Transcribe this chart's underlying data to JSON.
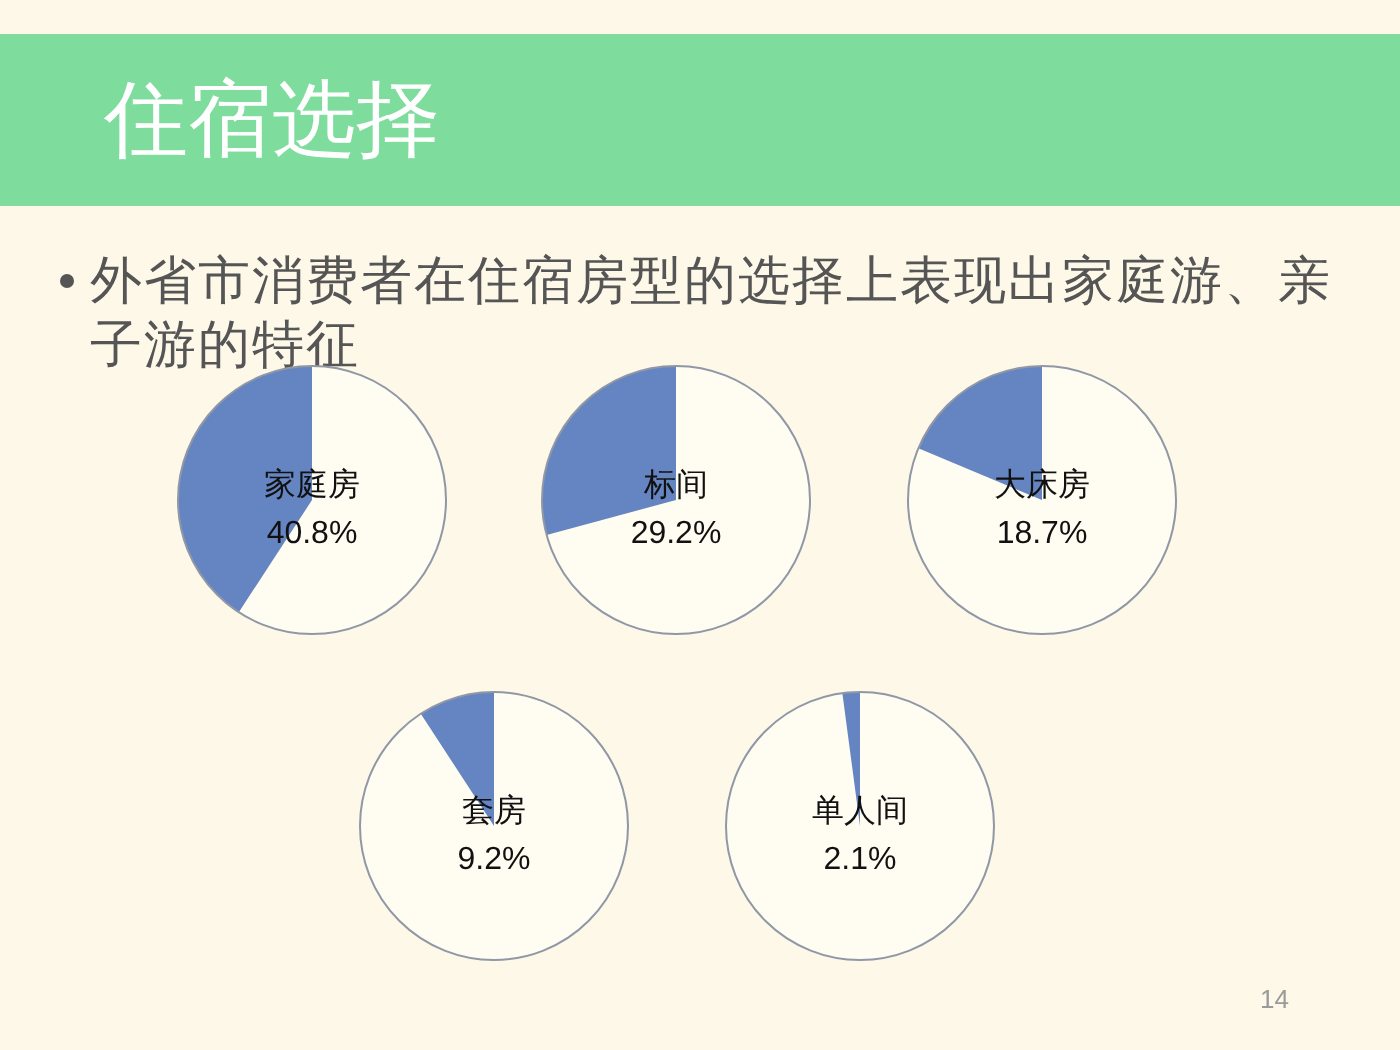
{
  "chart_data": [
    {
      "type": "other",
      "title": "住宿选择",
      "subtitle": "外省市消费者在住宿房型的选择上表现出家庭游、亲子游的特征",
      "annotations": [
        "14"
      ]
    },
    {
      "type": "pie",
      "categories": [
        "家庭房",
        null
      ],
      "values": [
        40.8,
        59.2
      ],
      "colors": [
        "#6585c2",
        "#fffcf2"
      ],
      "value_labels": [
        "40.8%",
        null
      ]
    },
    {
      "type": "pie",
      "categories": [
        "标间",
        null
      ],
      "values": [
        29.2,
        70.8
      ],
      "colors": [
        "#6585c2",
        "#fffcf2"
      ],
      "value_labels": [
        "29.2%",
        null
      ]
    },
    {
      "type": "pie",
      "categories": [
        "大床房",
        null
      ],
      "values": [
        18.7,
        81.3
      ],
      "colors": [
        "#6585c2",
        "#fffcf2"
      ],
      "value_labels": [
        "18.7%",
        null
      ]
    },
    {
      "type": "pie",
      "categories": [
        "套房",
        null
      ],
      "values": [
        9.2,
        90.8
      ],
      "colors": [
        "#6585c2",
        "#fffcf2"
      ],
      "value_labels": [
        "9.2%",
        null
      ]
    },
    {
      "type": "pie",
      "categories": [
        "单人间",
        null
      ],
      "values": [
        2.1,
        97.9
      ],
      "colors": [
        "#6585c2",
        "#fffcf2"
      ],
      "value_labels": [
        "2.1%",
        null
      ]
    }
  ]
}
